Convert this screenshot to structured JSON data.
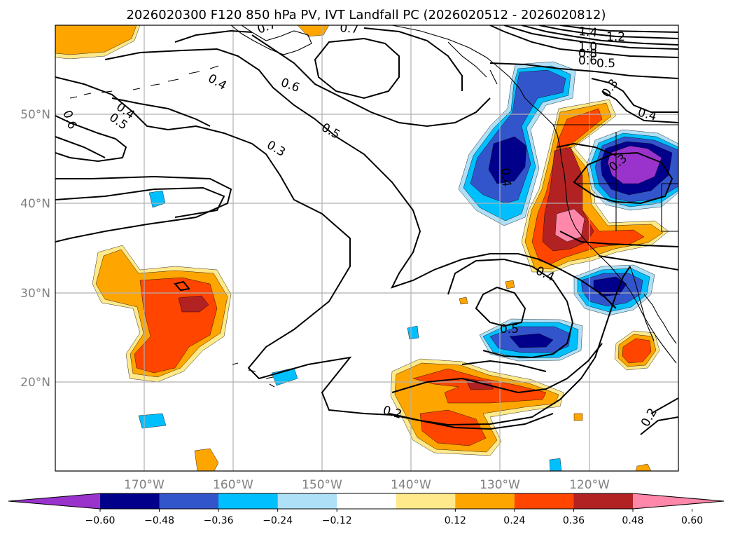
{
  "title": "2026020300 F120 850 hPa PV, IVT Landfall PC (2026020512 - 2026020812)",
  "map": {
    "lat_labels": [
      "50°N",
      "40°N",
      "30°N",
      "20°N"
    ],
    "lon_labels": [
      "170°W",
      "160°W",
      "150°W",
      "140°W",
      "130°W",
      "120°W"
    ],
    "lat_values": [
      50,
      40,
      30,
      20
    ],
    "lon_values": [
      -170,
      -160,
      -150,
      -140,
      -130,
      -120
    ],
    "extent": {
      "lon_min": -180,
      "lon_max": -110,
      "lat_min": 10,
      "lat_max": 60
    },
    "grid": true
  },
  "contour_labels": [
    "0.7",
    "0.7",
    "1.4",
    "1.2",
    "1.0",
    "0.8",
    "0.6",
    "0.5",
    "0.3",
    "0.4",
    "0.6",
    "0.5",
    "0.3",
    "0.4",
    "0.6",
    "0.4",
    "0.5",
    "0.4",
    "0.3",
    "0.4",
    "0.5",
    "0.2",
    "0.2"
  ],
  "colorbar": {
    "ticks": [
      "−0.60",
      "−0.48",
      "−0.36",
      "−0.24",
      "−0.12",
      "0.12",
      "0.24",
      "0.36",
      "0.48",
      "0.60"
    ],
    "colors": [
      "#9933cc",
      "#00008b",
      "#3355cc",
      "#00bfff",
      "#aee0f8",
      "#ffffff",
      "#ffe98a",
      "#ffa500",
      "#ff4500",
      "#b22222",
      "#ff88aa"
    ],
    "extend": "both"
  },
  "palette": {
    "purple": "#9933cc",
    "navy": "#00008b",
    "blue": "#3355cc",
    "cyan": "#00bfff",
    "lightblue": "#aee0f8",
    "lightyellow": "#ffe98a",
    "orange": "#ffa500",
    "redorange": "#ff4500",
    "darkred": "#b22222",
    "pink": "#ff88aa"
  }
}
